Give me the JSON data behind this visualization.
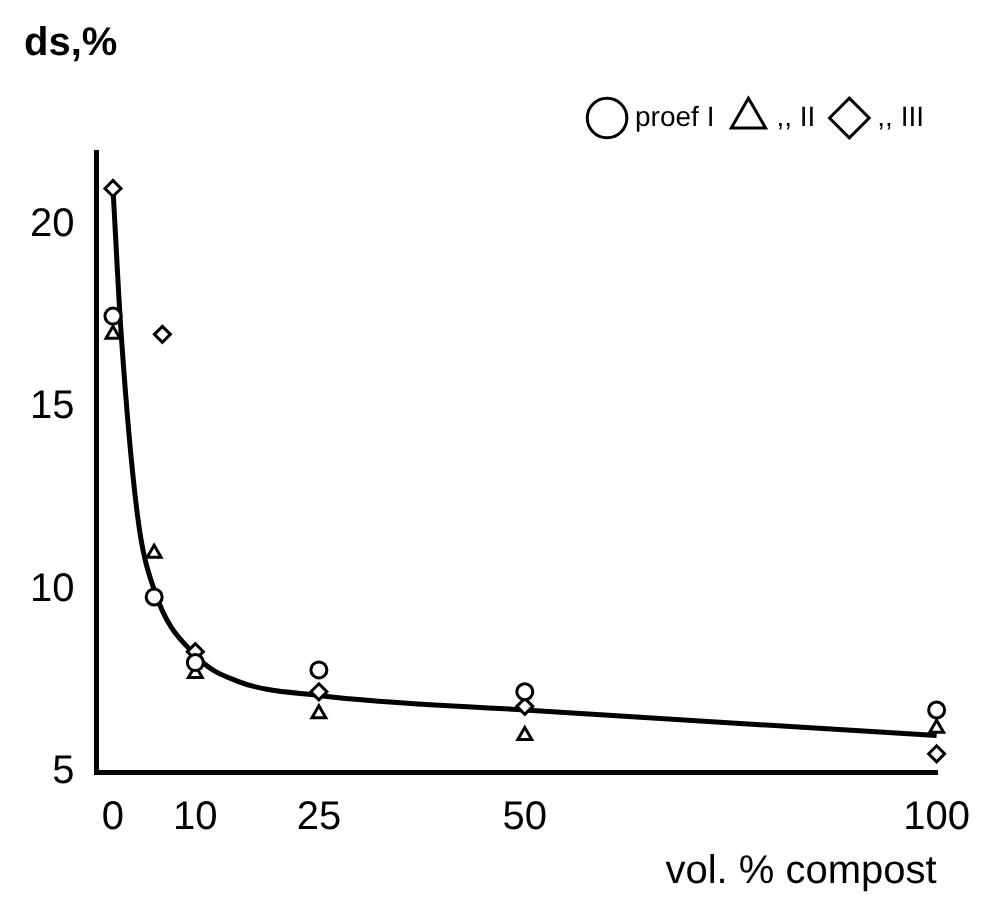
{
  "chart_data": {
    "type": "scatter",
    "ylabel": "ds,%",
    "xlabel": "vol. % compost",
    "xlim": [
      -2,
      100
    ],
    "xticks": [
      0,
      10,
      25,
      50,
      100
    ],
    "ylim": [
      5,
      22
    ],
    "yticks": [
      5,
      10,
      15,
      20
    ],
    "grid": false,
    "legend": "top right",
    "series": [
      {
        "name": "proef I",
        "color": "#000000",
        "marker": "circle",
        "x": [
          0,
          5,
          10,
          25,
          50,
          100
        ],
        "values": [
          17.5,
          9.8,
          8.0,
          7.8,
          7.2,
          6.7
        ]
      },
      {
        "name": ",, II",
        "color": "#000000",
        "marker": "triangle",
        "x": [
          0,
          5,
          10,
          25,
          50,
          100
        ],
        "values": [
          17.0,
          11.0,
          7.7,
          6.6,
          6.0,
          6.2
        ]
      },
      {
        "name": ",, III",
        "color": "#000000",
        "marker": "diamond",
        "x": [
          0,
          6,
          10,
          25,
          50,
          100
        ],
        "values": [
          21.0,
          17.0,
          8.3,
          7.2,
          6.8,
          5.5
        ]
      },
      {
        "type": "line",
        "color": "#000000",
        "marker": "none",
        "x": [
          0,
          1,
          3,
          5,
          10,
          15,
          25,
          50,
          100
        ],
        "values": [
          21.0,
          17.0,
          12.0,
          10.0,
          8.2,
          7.5,
          7.1,
          6.7,
          6.0
        ]
      }
    ]
  }
}
